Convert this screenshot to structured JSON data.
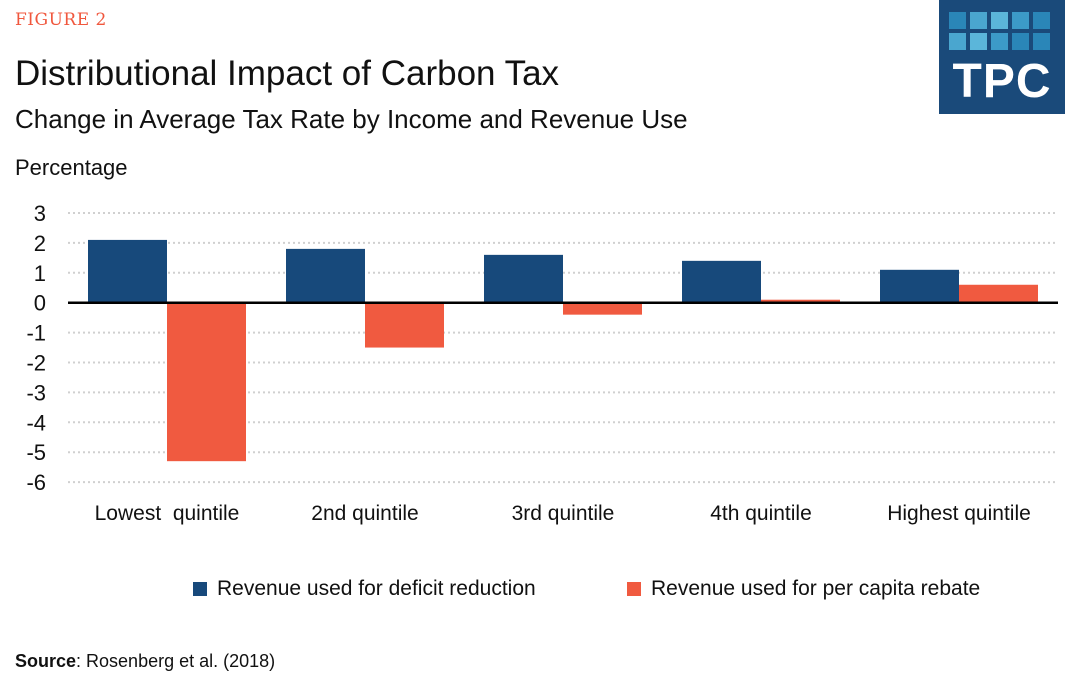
{
  "header": {
    "figure_label": "FIGURE 2",
    "logo_text": "TPC"
  },
  "chart_data": {
    "type": "bar",
    "title": "Distributional Impact of Carbon Tax",
    "subtitle": "Change in Average Tax Rate by Income and Revenue Use",
    "ylabel": "Percentage",
    "xlabel": "",
    "categories": [
      "Lowest  quintile",
      "2nd quintile",
      "3rd quintile",
      "4th quintile",
      "Highest quintile"
    ],
    "series": [
      {
        "name": "Revenue used for deficit reduction",
        "color": "#17497b",
        "values": [
          2.1,
          1.8,
          1.6,
          1.4,
          1.1
        ]
      },
      {
        "name": "Revenue used for per capita rebate",
        "color": "#f05a40",
        "values": [
          -5.3,
          -1.5,
          -0.4,
          0.1,
          0.6
        ]
      }
    ],
    "ylim": [
      -6,
      3
    ],
    "yticks": [
      "3",
      "2",
      "1",
      "0",
      "-1",
      "-2",
      "-3",
      "-4",
      "-5",
      "-6"
    ],
    "grid": true,
    "legend_position": "bottom"
  },
  "source": {
    "label": "Source",
    "text": ": Rosenberg et al. (2018)"
  }
}
